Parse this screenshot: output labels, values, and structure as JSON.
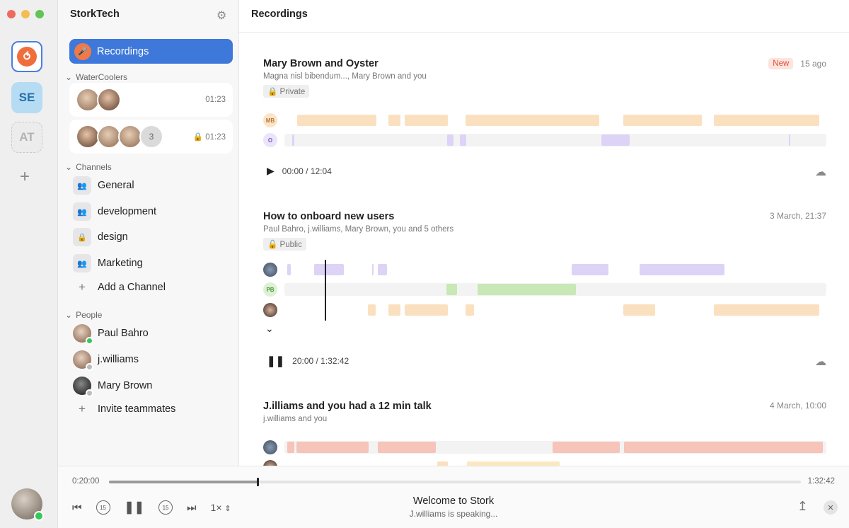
{
  "workspaces": [
    {
      "label": "",
      "icon": "stork-logo-icon"
    },
    {
      "label": "SE"
    },
    {
      "label": "AT"
    }
  ],
  "sidebar": {
    "team_name": "StorkTech",
    "recordings_label": "Recordings",
    "watercoolers_header": "WaterCoolers",
    "watercoolers": [
      {
        "time": "01:23"
      },
      {
        "extra_count": "3",
        "time": "01:23"
      }
    ],
    "channels_header": "Channels",
    "channels": [
      {
        "label": "General"
      },
      {
        "label": "development"
      },
      {
        "label": "design"
      },
      {
        "label": "Marketing"
      }
    ],
    "add_channel": "Add a Channel",
    "people_header": "People",
    "people": [
      {
        "name": "Paul Bahro"
      },
      {
        "name": "j.williams"
      },
      {
        "name": "Mary Brown"
      }
    ],
    "invite": "Invite teammates"
  },
  "header": {
    "title": "Recordings"
  },
  "recordings": [
    {
      "title": "Mary Brown and Oyster",
      "participants": "Magna nisl bibendum..., Mary Brown and you",
      "badge": "New",
      "time": "15 ago",
      "visibility": "Private",
      "tracks": [
        {
          "initials": "MB"
        },
        {
          "initials": "O"
        }
      ],
      "playback": "00:00 / 12:04"
    },
    {
      "title": "How to onboard new users",
      "participants": "Paul Bahro, j.williams, Mary Brown, you and 5 others",
      "time": "3 March, 21:37",
      "visibility": "Public",
      "tracks": [
        {
          "initials": ""
        },
        {
          "initials": "PB"
        },
        {
          "initials": ""
        }
      ],
      "playback": "20:00 / 1:32:42"
    },
    {
      "title": "J.illiams and you had a 12 min talk",
      "participants": "j.williams and you",
      "time": "4 March, 10:00"
    }
  ],
  "player": {
    "elapsed": "0:20:00",
    "total": "1:32:42",
    "progress": 0.215,
    "speed": "1×",
    "skip_back": "15",
    "skip_fwd": "15",
    "title": "Welcome to Stork",
    "status": "J.williams is speaking..."
  }
}
